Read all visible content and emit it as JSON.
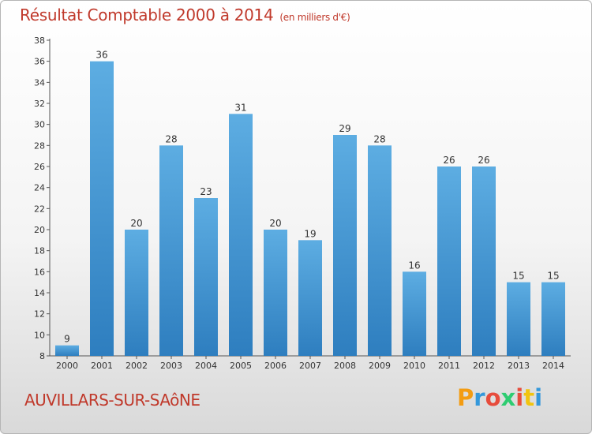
{
  "chart_data": {
    "type": "bar",
    "title": "Résultat Comptable 2000 à 2014",
    "unit": "(en milliers d'€)",
    "categories": [
      "2000",
      "2001",
      "2002",
      "2003",
      "2004",
      "2005",
      "2006",
      "2007",
      "2008",
      "2009",
      "2010",
      "2011",
      "2012",
      "2013",
      "2014"
    ],
    "values": [
      9,
      36,
      20,
      28,
      23,
      31,
      20,
      19,
      29,
      28,
      16,
      26,
      26,
      15,
      15
    ],
    "ylim": [
      8,
      38
    ],
    "yticks": [
      8,
      10,
      12,
      14,
      16,
      18,
      20,
      22,
      24,
      26,
      28,
      30,
      32,
      34,
      36,
      38
    ],
    "grid": false,
    "bar_color_top": "#5dade2",
    "bar_color_bottom": "#2e7ebf"
  },
  "location": "AUVILLARS-SUR-SAôNE",
  "brand": {
    "letters": [
      "P",
      "r",
      "o",
      "x",
      "i",
      "t",
      "i"
    ],
    "colors": [
      "#f39c12",
      "#3498db",
      "#e74c3c",
      "#2ecc71",
      "#e74c3c",
      "#f1c40f",
      "#3498db"
    ]
  },
  "colors": {
    "title": "#c0392b",
    "axis": "#333333"
  }
}
